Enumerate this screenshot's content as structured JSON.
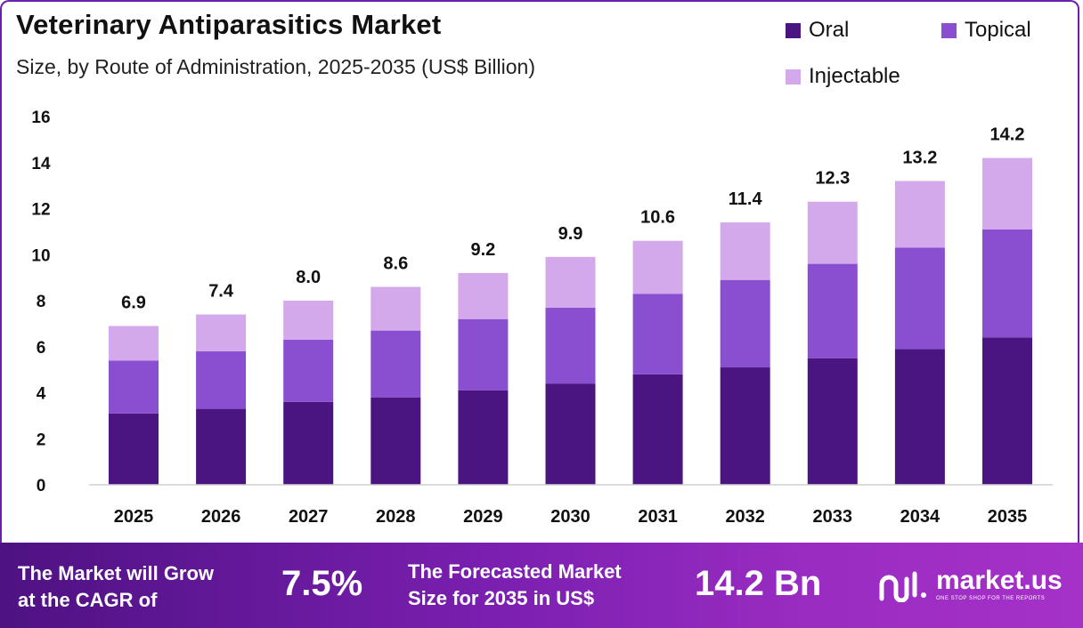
{
  "header": {
    "title": "Veterinary Antiparasitics Market",
    "subtitle": "Size, by Route of Administration, 2025-2035 (US$ Billion)"
  },
  "legend": [
    {
      "label": "Oral",
      "color": "#4b1581"
    },
    {
      "label": "Topical",
      "color": "#8a4fd0"
    },
    {
      "label": "Injectable",
      "color": "#d3a9ec"
    }
  ],
  "chart_data": {
    "type": "bar",
    "stacked": true,
    "title": "Veterinary Antiparasitics Market",
    "subtitle": "Size, by Route of Administration, 2025-2035 (US$ Billion)",
    "xlabel": "",
    "ylabel": "",
    "ylim": [
      0,
      16
    ],
    "yticks": [
      0,
      2,
      4,
      6,
      8,
      10,
      12,
      14,
      16
    ],
    "categories": [
      "2025",
      "2026",
      "2027",
      "2028",
      "2029",
      "2030",
      "2031",
      "2032",
      "2033",
      "2034",
      "2035"
    ],
    "series": [
      {
        "name": "Oral",
        "color": "#4b1581",
        "values": [
          3.1,
          3.3,
          3.6,
          3.8,
          4.1,
          4.4,
          4.8,
          5.1,
          5.5,
          5.9,
          6.4
        ]
      },
      {
        "name": "Topical",
        "color": "#8a4fd0",
        "values": [
          2.3,
          2.5,
          2.7,
          2.9,
          3.1,
          3.3,
          3.5,
          3.8,
          4.1,
          4.4,
          4.7
        ]
      },
      {
        "name": "Injectable",
        "color": "#d3a9ec",
        "values": [
          1.5,
          1.6,
          1.7,
          1.9,
          2.0,
          2.2,
          2.3,
          2.5,
          2.7,
          2.9,
          3.1
        ]
      }
    ],
    "totals": [
      "6.9",
      "7.4",
      "8.0",
      "8.6",
      "9.2",
      "9.9",
      "10.6",
      "11.4",
      "12.3",
      "13.2",
      "14.2"
    ],
    "grid": false,
    "legend_position": "top-right"
  },
  "footer": {
    "cagr_text_line1": "The Market will Grow",
    "cagr_text_line2": "at the CAGR of",
    "cagr_value": "7.5%",
    "forecast_text_line1": "The Forecasted Market",
    "forecast_text_line2": "Size for 2035 in US$",
    "forecast_value": "14.2 Bn",
    "brand_name": "market.us",
    "brand_tagline": "ONE STOP SHOP FOR THE REPORTS"
  }
}
